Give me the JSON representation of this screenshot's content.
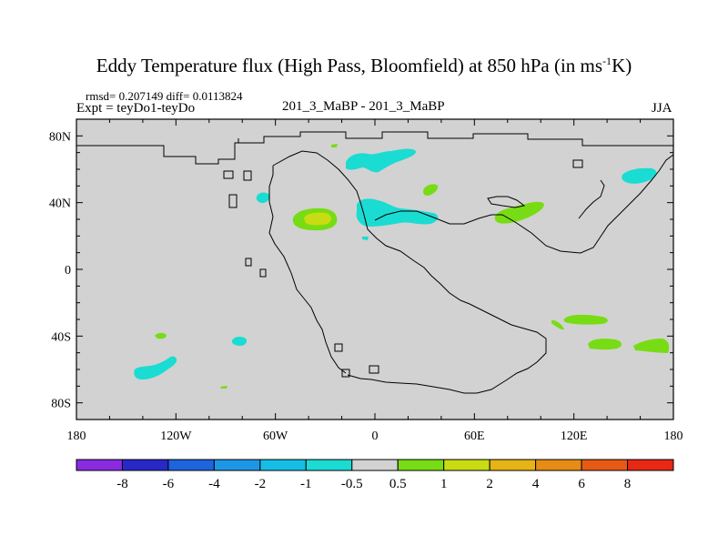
{
  "header": {
    "title_main": "Eddy Temperature flux (High Pass, Bloomfield) at 850 hPa (in ms",
    "title_sup": "-1",
    "title_end": "K)",
    "stats": "rmsd= 0.207149 diff= 0.0113824",
    "expt": "Expt = teyDo1-teyDo",
    "runs": "201_3_MaBP - 201_3_MaBP",
    "season": "JJA"
  },
  "chart_data": {
    "type": "heatmap",
    "map_type": "contour-fill",
    "lon_range": [
      -180,
      180
    ],
    "lat_range": [
      -90,
      90
    ],
    "x_ticks": [
      {
        "value": -180,
        "label": "180"
      },
      {
        "value": -120,
        "label": "120W"
      },
      {
        "value": -60,
        "label": "60W"
      },
      {
        "value": 0,
        "label": "0"
      },
      {
        "value": 60,
        "label": "60E"
      },
      {
        "value": 120,
        "label": "120E"
      },
      {
        "value": 180,
        "label": "180"
      }
    ],
    "y_ticks": [
      {
        "value": 80,
        "label": "80N"
      },
      {
        "value": 40,
        "label": "40N"
      },
      {
        "value": 0,
        "label": "0"
      },
      {
        "value": -40,
        "label": "40S"
      },
      {
        "value": -80,
        "label": "80S"
      }
    ],
    "colorbar": {
      "labels": [
        "-8",
        "-6",
        "-4",
        "-2",
        "-1",
        "-0.5",
        "0.5",
        "1",
        "2",
        "4",
        "6",
        "8"
      ],
      "colors": [
        "#8a2be2",
        "#2828c8",
        "#1e64dc",
        "#1e96e6",
        "#14bee6",
        "#1adcd2",
        "#d2d2d2",
        "#78dc14",
        "#c8dc14",
        "#e6b414",
        "#e68c14",
        "#e65a14",
        "#e62814"
      ]
    },
    "background_color": "#d2d2d2",
    "features": [
      {
        "class": "-1 to -0.5",
        "color": "#1adcd2",
        "lon": -115,
        "lat": -63
      },
      {
        "class": "-1 to -0.5",
        "color": "#1adcd2",
        "lon": -82,
        "lat": -42
      },
      {
        "class": "-1 to -0.5",
        "color": "#1adcd2",
        "lon": -68,
        "lat": 42
      },
      {
        "class": "-1 to -0.5",
        "color": "#1adcd2",
        "lon": -5,
        "lat": 68
      },
      {
        "class": "-1 to -0.5",
        "color": "#1adcd2",
        "lon": 25,
        "lat": 35
      },
      {
        "class": "-1 to -0.5",
        "color": "#1adcd2",
        "lon": 160,
        "lat": 58
      },
      {
        "class": "0.5 to 1",
        "color": "#78dc14",
        "lon": -40,
        "lat": 30
      },
      {
        "class": "1 to 2",
        "color": "#c8dc14",
        "lon": -36,
        "lat": 31
      },
      {
        "class": "0.5 to 1",
        "color": "#78dc14",
        "lon": 92,
        "lat": 34
      },
      {
        "class": "0.5 to 1",
        "color": "#78dc14",
        "lon": 34,
        "lat": 48
      },
      {
        "class": "0.5 to 1",
        "color": "#78dc14",
        "lon": 117,
        "lat": -30
      },
      {
        "class": "0.5 to 1",
        "color": "#78dc14",
        "lon": 150,
        "lat": -45
      },
      {
        "class": "0.5 to 1",
        "color": "#78dc14",
        "lon": -130,
        "lat": -40
      }
    ]
  }
}
